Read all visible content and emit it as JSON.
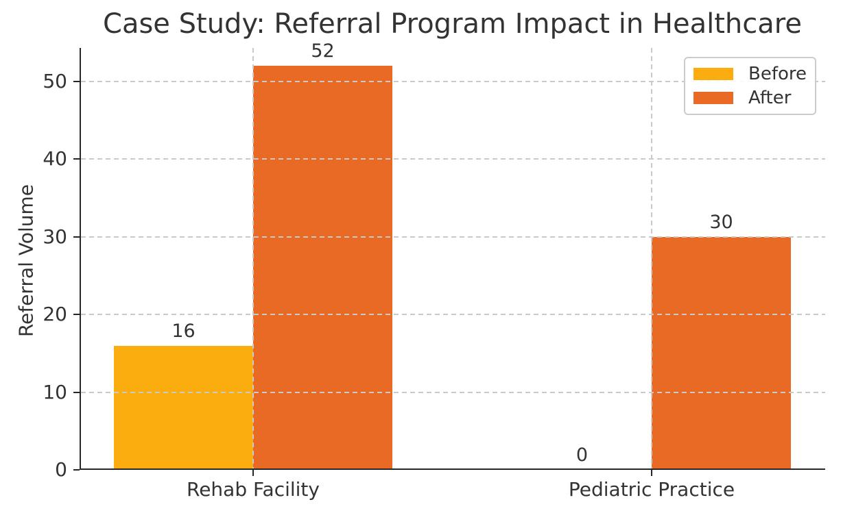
{
  "chart_data": {
    "type": "bar",
    "title": "Case Study: Referral Program Impact in Healthcare",
    "xlabel": "",
    "ylabel": "Referral Volume",
    "categories": [
      "Rehab Facility",
      "Pediatric Practice"
    ],
    "series": [
      {
        "name": "Before",
        "color": "#FBAD0F",
        "values": [
          16,
          0
        ]
      },
      {
        "name": "After",
        "color": "#E96A24",
        "values": [
          52,
          30
        ]
      }
    ],
    "bar_value_labels": [
      [
        16,
        0
      ],
      [
        52,
        30
      ]
    ],
    "yticks": [
      0,
      10,
      20,
      30,
      40,
      50
    ],
    "ylim": [
      0,
      54.3
    ],
    "grid": "both, dashed, drawn over bars",
    "legend_position": "upper right"
  },
  "style": {
    "text_color": "#333333",
    "spine_color": "#262626",
    "grid_color": "#c9c9c9",
    "background": "#ffffff"
  }
}
